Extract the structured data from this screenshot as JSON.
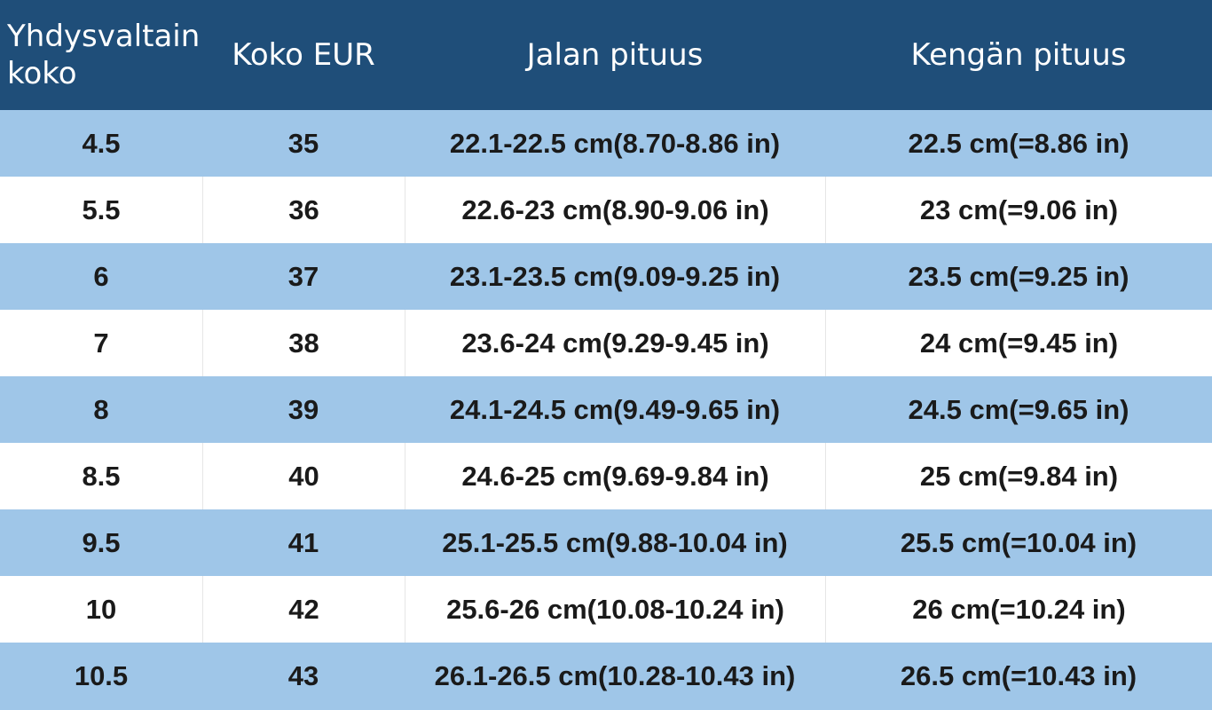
{
  "table": {
    "headers": [
      [
        "Yhdysvaltain",
        "koko"
      ],
      [
        "Koko EUR"
      ],
      [
        "Jalan pituus"
      ],
      [
        "Kengän pituus"
      ]
    ],
    "rows": [
      [
        "4.5",
        "35",
        "22.1-22.5 cm(8.70-8.86 in)",
        "22.5 cm(=8.86 in)"
      ],
      [
        "5.5",
        "36",
        "22.6-23 cm(8.90-9.06 in)",
        "23 cm(=9.06 in)"
      ],
      [
        "6",
        "37",
        "23.1-23.5 cm(9.09-9.25 in)",
        "23.5 cm(=9.25 in)"
      ],
      [
        "7",
        "38",
        "23.6-24 cm(9.29-9.45 in)",
        "24 cm(=9.45 in)"
      ],
      [
        "8",
        "39",
        "24.1-24.5 cm(9.49-9.65 in)",
        "24.5 cm(=9.65 in)"
      ],
      [
        "8.5",
        "40",
        "24.6-25 cm(9.69-9.84 in)",
        "25 cm(=9.84 in)"
      ],
      [
        "9.5",
        "41",
        "25.1-25.5 cm(9.88-10.04 in)",
        "25.5 cm(=10.04 in)"
      ],
      [
        "10",
        "42",
        "25.6-26 cm(10.08-10.24 in)",
        "26 cm(=10.24 in)"
      ],
      [
        "10.5",
        "43",
        "26.1-26.5 cm(10.28-10.43 in)",
        "26.5 cm(=10.43 in)"
      ]
    ]
  },
  "colors": {
    "header_bg": "#1f4e79",
    "header_text": "#ffffff",
    "stripe_blue": "#9fc6e8",
    "stripe_white": "#ffffff",
    "body_text": "#1a1a1a"
  }
}
